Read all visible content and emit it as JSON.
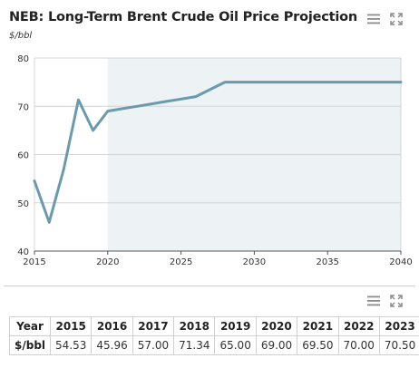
{
  "header": {
    "title": "NEB: Long-Term Brent Crude Oil Price Projection",
    "subtitle": "$/bbl",
    "menu_icon": "hamburger-menu-icon",
    "expand_icon": "expand-icon"
  },
  "colors": {
    "line": "#6a9aac",
    "projection_band": "#edf2f5",
    "grid": "#d4d4d4",
    "axis": "#555555"
  },
  "chart_data": {
    "type": "line",
    "title": "NEB: Long-Term Brent Crude Oil Price Projection",
    "ylabel": "$/bbl",
    "xlim": [
      2015,
      2040
    ],
    "ylim": [
      40,
      80
    ],
    "x_ticks": [
      "2015",
      "2020",
      "2025",
      "2030",
      "2035",
      "2040"
    ],
    "y_ticks": [
      "40",
      "50",
      "60",
      "70",
      "80"
    ],
    "grid": true,
    "shaded_region": {
      "from": 2020,
      "to": 2040
    },
    "series": [
      {
        "x": [
          2015,
          2016,
          2017,
          2018,
          2019,
          2020,
          2021,
          2022,
          2023,
          2024,
          2025,
          2026,
          2027,
          2028,
          2029,
          2030,
          2031,
          2032,
          2033,
          2034,
          2035,
          2036,
          2037,
          2038,
          2039,
          2040
        ],
        "values": [
          54.53,
          45.96,
          57.0,
          71.34,
          65.0,
          69.0,
          69.5,
          70.0,
          70.5,
          71.0,
          71.5,
          72.0,
          73.5,
          75.0,
          75.0,
          75.0,
          75.0,
          75.0,
          75.0,
          75.0,
          75.0,
          75.0,
          75.0,
          75.0,
          75.0,
          75.0
        ]
      }
    ]
  },
  "table": {
    "menu_icon": "hamburger-menu-icon",
    "expand_icon": "expand-icon",
    "row_headers": [
      "Year",
      "$/bbl"
    ],
    "years": [
      "2015",
      "2016",
      "2017",
      "2018",
      "2019",
      "2020",
      "2021",
      "2022",
      "2023"
    ],
    "values": [
      "54.53",
      "45.96",
      "57.00",
      "71.34",
      "65.00",
      "69.00",
      "69.50",
      "70.00",
      "70.50"
    ]
  }
}
